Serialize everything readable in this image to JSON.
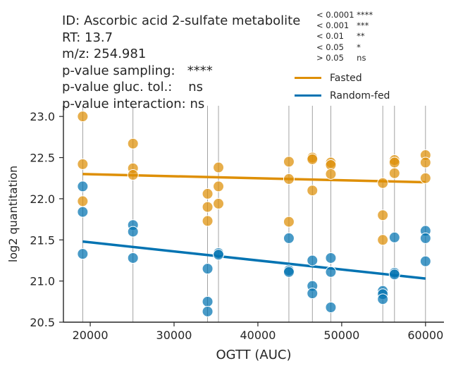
{
  "chart_data": {
    "type": "scatter",
    "title_lines": [
      "ID: Ascorbic acid 2-sulfate metabolite",
      "RT: 13.7",
      "m/z: 254.981",
      "p-value sampling:   ****",
      "p-value gluc. tol.:    ns",
      "p-value interaction: ns"
    ],
    "pvalue_key": [
      "< 0.0001 ****",
      "< 0.001   ***",
      "< 0.01     **",
      "< 0.05     *",
      "> 0.05     ns"
    ],
    "xlabel": "OGTT (AUC)",
    "ylabel": "log2 quantitation",
    "xlim": [
      16800,
      62200
    ],
    "ylim": [
      20.5,
      23.13
    ],
    "xticks": [
      20000,
      30000,
      40000,
      50000,
      60000
    ],
    "yticks": [
      20.5,
      21.0,
      21.5,
      22.0,
      22.5,
      23.0
    ],
    "vlines": [
      19100,
      25100,
      34000,
      35300,
      43700,
      46500,
      48700,
      54900,
      56300,
      60000
    ],
    "legend_placement": "top-right",
    "series": [
      {
        "name": "Fasted",
        "color": "#de8f05",
        "points": [
          [
            19100,
            23.0
          ],
          [
            19100,
            22.42
          ],
          [
            19100,
            21.97
          ],
          [
            25100,
            22.67
          ],
          [
            25100,
            22.37
          ],
          [
            25100,
            22.29
          ],
          [
            34000,
            22.06
          ],
          [
            34000,
            21.9
          ],
          [
            34000,
            21.73
          ],
          [
            35300,
            22.38
          ],
          [
            35300,
            22.15
          ],
          [
            35300,
            21.94
          ],
          [
            43700,
            22.45
          ],
          [
            43700,
            22.24
          ],
          [
            43700,
            21.72
          ],
          [
            46500,
            22.5
          ],
          [
            46500,
            22.48
          ],
          [
            46500,
            22.1
          ],
          [
            48700,
            22.44
          ],
          [
            48700,
            22.41
          ],
          [
            48700,
            22.3
          ],
          [
            54900,
            22.19
          ],
          [
            54900,
            21.8
          ],
          [
            54900,
            21.5
          ],
          [
            56300,
            22.47
          ],
          [
            56300,
            22.44
          ],
          [
            56300,
            22.31
          ],
          [
            60000,
            22.53
          ],
          [
            60000,
            22.44
          ],
          [
            60000,
            22.25
          ]
        ],
        "fit": [
          [
            19100,
            22.3
          ],
          [
            60000,
            22.2
          ]
        ]
      },
      {
        "name": "Random-fed",
        "color": "#0173b2",
        "points": [
          [
            19100,
            22.15
          ],
          [
            19100,
            21.84
          ],
          [
            19100,
            21.33
          ],
          [
            25100,
            21.68
          ],
          [
            25100,
            21.6
          ],
          [
            25100,
            21.28
          ],
          [
            34000,
            21.15
          ],
          [
            34000,
            20.75
          ],
          [
            34000,
            20.63
          ],
          [
            35300,
            21.34
          ],
          [
            35300,
            21.32
          ],
          [
            43700,
            21.52
          ],
          [
            43700,
            21.13
          ],
          [
            43700,
            21.11
          ],
          [
            46500,
            21.25
          ],
          [
            46500,
            20.94
          ],
          [
            46500,
            20.85
          ],
          [
            48700,
            21.28
          ],
          [
            48700,
            21.11
          ],
          [
            48700,
            20.68
          ],
          [
            54900,
            20.88
          ],
          [
            54900,
            20.84
          ],
          [
            54900,
            20.78
          ],
          [
            56300,
            21.53
          ],
          [
            56300,
            21.1
          ],
          [
            56300,
            21.08
          ],
          [
            60000,
            21.61
          ],
          [
            60000,
            21.52
          ],
          [
            60000,
            21.24
          ]
        ],
        "fit": [
          [
            19100,
            21.48
          ],
          [
            60000,
            21.03
          ]
        ]
      }
    ]
  }
}
